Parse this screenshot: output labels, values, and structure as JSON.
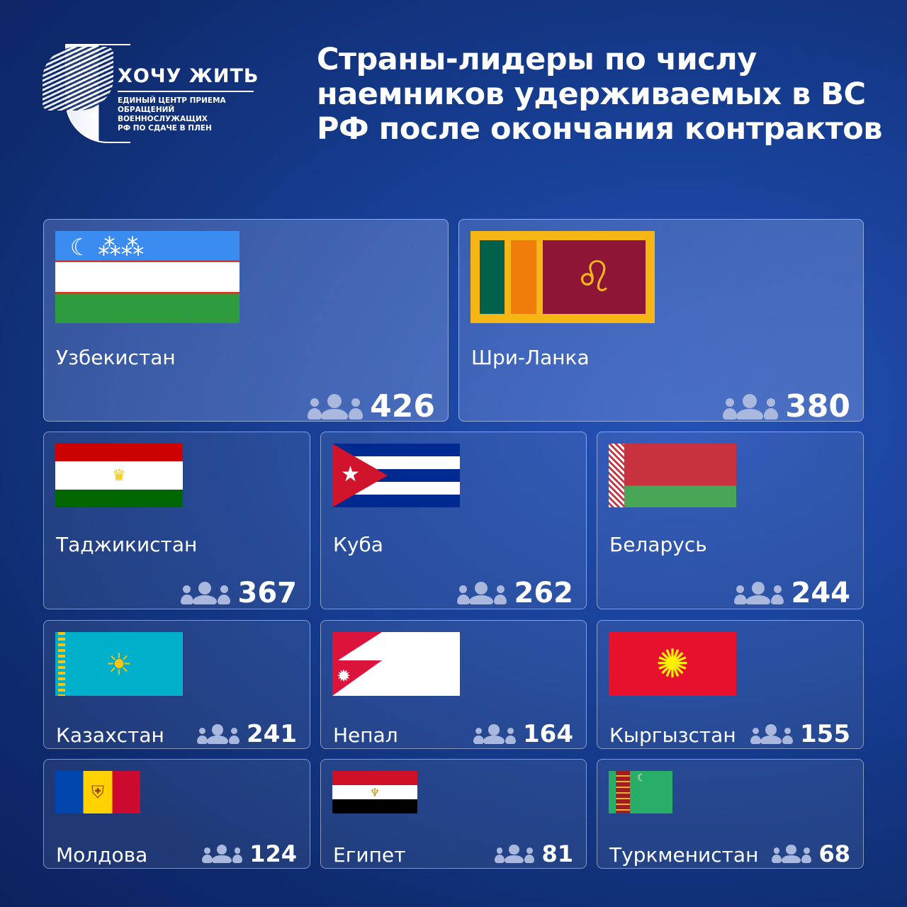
{
  "logo": {
    "name": "ХОЧУ ЖИТЬ",
    "subtitle": [
      "ЕДИНЫЙ ЦЕНТР ПРИЕМА",
      "ОБРАЩЕНИЙ ВОЕННОСЛУЖАЩИХ",
      "РФ ПО СДАЧЕ В ПЛЕН"
    ]
  },
  "title": "Страны-лидеры по числу наемников удерживаемых в ВС РФ после окончания контрактов",
  "countries": [
    {
      "name": "Узбекистан",
      "count": "426",
      "flag": "uzbekistan-flag"
    },
    {
      "name": "Шри-Ланка",
      "count": "380",
      "flag": "sri-lanka-flag"
    },
    {
      "name": "Таджикистан",
      "count": "367",
      "flag": "tajikistan-flag"
    },
    {
      "name": "Куба",
      "count": "262",
      "flag": "cuba-flag"
    },
    {
      "name": "Беларусь",
      "count": "244",
      "flag": "belarus-flag"
    },
    {
      "name": "Казахстан",
      "count": "241",
      "flag": "kazakhstan-flag"
    },
    {
      "name": "Непал",
      "count": "164",
      "flag": "nepal-flag"
    },
    {
      "name": "Кыргызстан",
      "count": "155",
      "flag": "kyrgyzstan-flag"
    },
    {
      "name": "Молдова",
      "count": "124",
      "flag": "moldova-flag"
    },
    {
      "name": "Египет",
      "count": "81",
      "flag": "egypt-flag"
    },
    {
      "name": "Туркменистан",
      "count": "68",
      "flag": "turkmenistan-flag"
    }
  ],
  "count_icon": "people-group-icon"
}
